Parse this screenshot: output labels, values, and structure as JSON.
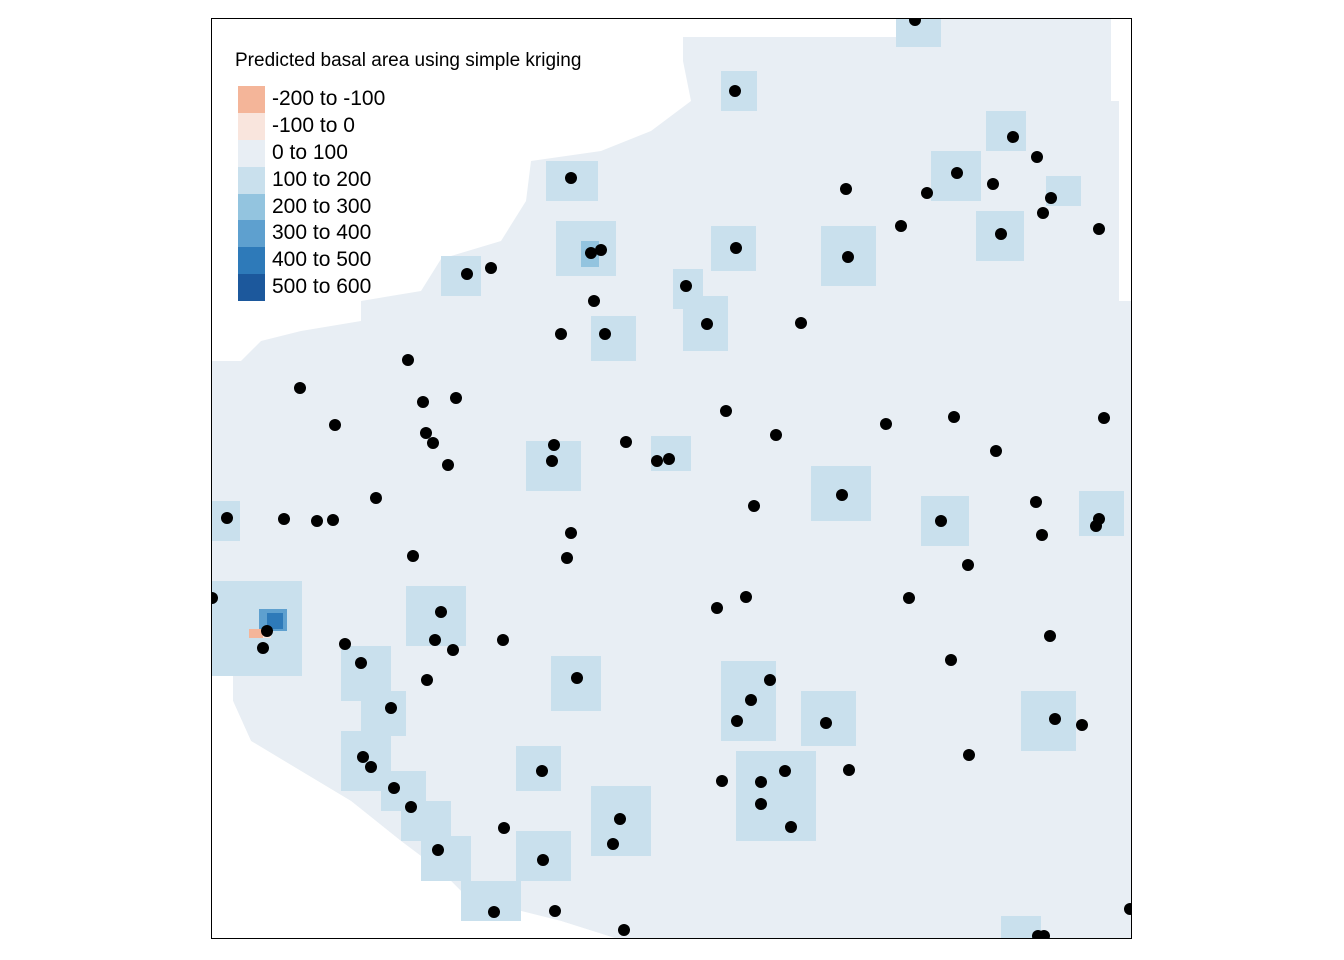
{
  "legend": {
    "title": "Predicted basal area using simple kriging",
    "classes": [
      {
        "label": "-200 to -100",
        "color": "#f4b599"
      },
      {
        "label": "-100 to 0",
        "color": "#f9e5dd"
      },
      {
        "label": "0 to 100",
        "color": "#e8eef4"
      },
      {
        "label": "100 to 200",
        "color": "#c9e0ed"
      },
      {
        "label": "200 to 300",
        "color": "#93c4df"
      },
      {
        "label": "300 to 400",
        "color": "#5ea0cf"
      },
      {
        "label": "400 to 500",
        "color": "#2e7ab9"
      },
      {
        "label": "500 to 600",
        "color": "#1c589c"
      }
    ]
  },
  "colors": {
    "background": "#ffffff",
    "point": "#000000",
    "frame": "#000000"
  }
}
